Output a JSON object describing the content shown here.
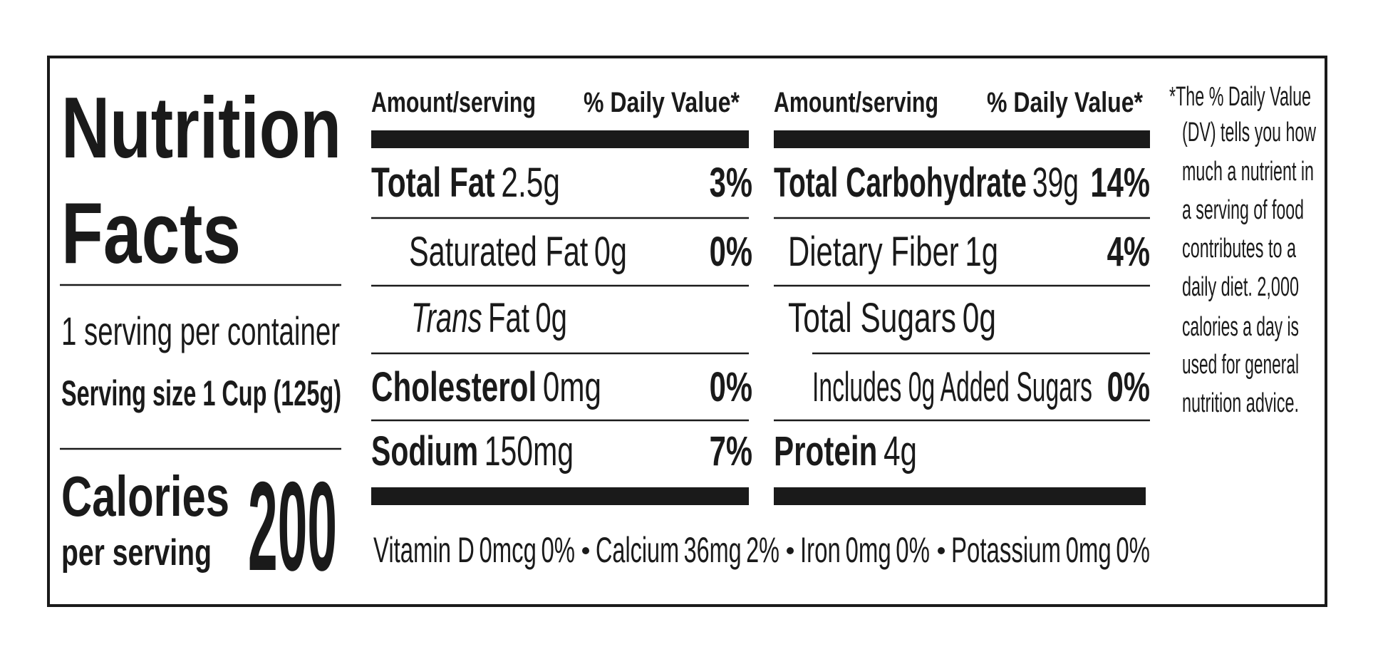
{
  "title": [
    "Nutrition",
    "Facts"
  ],
  "servings_per_container": "1 serving per container",
  "serving_size": "Serving size 1 Cup (125g)",
  "calories": {
    "label": "Calories",
    "sublabel": "per serving",
    "value": "200"
  },
  "columns": [
    {
      "header": {
        "amount": "Amount/serving",
        "dv": "% Daily Value*"
      },
      "rows": [
        {
          "name": "Total Fat",
          "amount": "2.5g",
          "dv": "3%"
        },
        {
          "name": "Saturated Fat",
          "amount": "0g",
          "dv": "0%"
        },
        {
          "name_prefix": "Trans",
          "name": "Fat",
          "amount": "0g"
        },
        {
          "name": "Cholesterol",
          "amount": "0mg",
          "dv": "0%"
        },
        {
          "name": "Sodium",
          "amount": "150mg",
          "dv": "7%"
        }
      ]
    },
    {
      "header": {
        "amount": "Amount/serving",
        "dv": "% Daily Value*"
      },
      "rows": [
        {
          "name": "Total Carbohydrate",
          "amount": "39g",
          "dv": "14%"
        },
        {
          "name": "Dietary Fiber",
          "amount": "1g",
          "dv": "4%"
        },
        {
          "name": "Total Sugars",
          "amount": "0g"
        },
        {
          "name": "Includes 0g Added Sugars",
          "dv": "0%"
        },
        {
          "name": "Protein",
          "amount": "4g"
        }
      ]
    }
  ],
  "vitamins": [
    {
      "name": "Vitamin D",
      "amount": "0mcg",
      "dv": "0%"
    },
    {
      "name": "Calcium",
      "amount": "36mg",
      "dv": "2%"
    },
    {
      "name": "Iron",
      "amount": "0mg",
      "dv": "0%"
    },
    {
      "name": "Potassium",
      "amount": "0mg",
      "dv": "0%"
    }
  ],
  "footnote": [
    "*The % Daily Value",
    "(DV) tells you how",
    "much a nutrient in",
    "a serving of food",
    "contributes to a",
    "daily diet. 2,000",
    "calories a day is",
    "used for general",
    "nutrition advice."
  ]
}
